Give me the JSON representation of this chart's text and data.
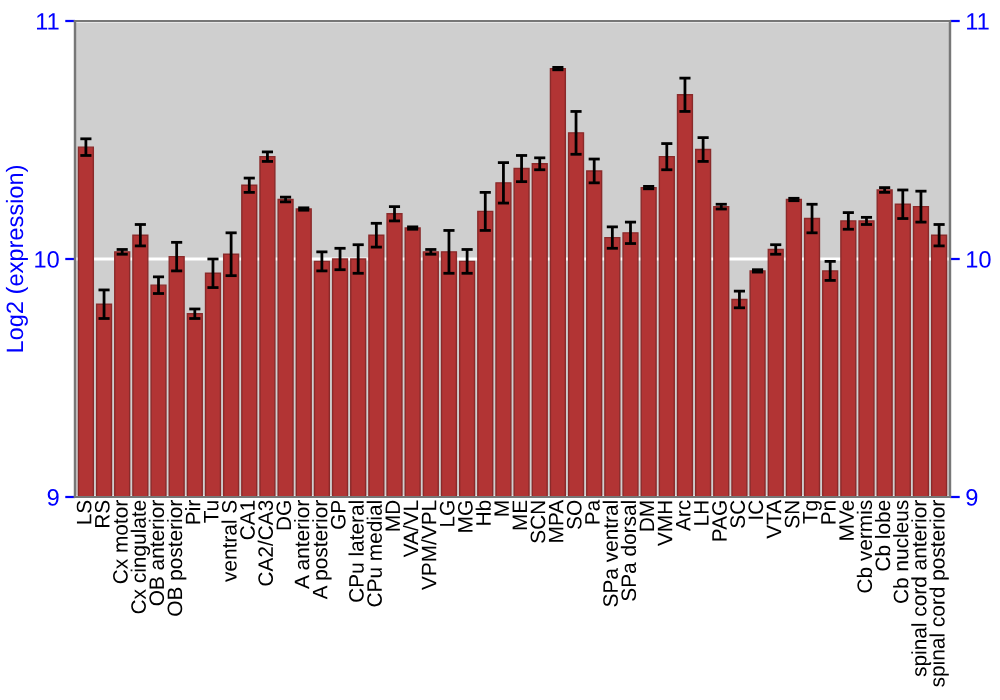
{
  "chart_data": {
    "type": "bar",
    "ylabel": "Log2 (expression)",
    "categories": [
      "LS",
      "RS",
      "Cx motor",
      "Cx cingulate",
      "OB anterior",
      "OB posterior",
      "Pir",
      "Tu",
      "ventral S",
      "CA1",
      "CA2/CA3",
      "DG",
      "A anterior",
      "A posterior",
      "GP",
      "CPu lateral",
      "CPu medial",
      "MD",
      "VA/VL",
      "VPM/VPL",
      "LG",
      "MG",
      "Hb",
      "M",
      "ME",
      "SCN",
      "MPA",
      "SO",
      "Pa",
      "SPa ventral",
      "SPa dorsal",
      "DM",
      "VMH",
      "Arc",
      "LH",
      "PAG",
      "SC",
      "IC",
      "VTA",
      "SN",
      "Tg",
      "Pn",
      "MVe",
      "Cb vermis",
      "Cb lobe",
      "Cb nucleus",
      "spinal cord anterior",
      "spinal cord posterior"
    ],
    "values": [
      10.47,
      9.81,
      10.03,
      10.1,
      9.89,
      10.01,
      9.77,
      9.94,
      10.02,
      10.31,
      10.43,
      10.25,
      10.21,
      9.99,
      10.0,
      10.0,
      10.1,
      10.19,
      10.13,
      10.03,
      10.03,
      9.99,
      10.2,
      10.32,
      10.38,
      10.4,
      10.8,
      10.53,
      10.37,
      10.09,
      10.11,
      10.3,
      10.43,
      10.69,
      10.46,
      10.22,
      9.83,
      9.95,
      10.04,
      10.25,
      10.17,
      9.95,
      10.16,
      10.16,
      10.29,
      10.23,
      10.22,
      10.1
    ],
    "errors": [
      0.035,
      0.06,
      0.01,
      0.045,
      0.035,
      0.06,
      0.02,
      0.06,
      0.09,
      0.03,
      0.02,
      0.01,
      0.005,
      0.04,
      0.045,
      0.06,
      0.05,
      0.03,
      0.005,
      0.01,
      0.09,
      0.05,
      0.08,
      0.085,
      0.055,
      0.025,
      0.005,
      0.09,
      0.05,
      0.045,
      0.045,
      0.005,
      0.055,
      0.07,
      0.05,
      0.01,
      0.035,
      0.005,
      0.02,
      0.005,
      0.06,
      0.04,
      0.035,
      0.015,
      0.01,
      0.06,
      0.065,
      0.045
    ],
    "color": "#b23434",
    "ylim": [
      9,
      11
    ],
    "yticks": [
      9,
      10,
      11
    ],
    "y2lim": [
      9,
      11
    ],
    "y2ticks": [
      9,
      10,
      11
    ],
    "grid": "y"
  }
}
